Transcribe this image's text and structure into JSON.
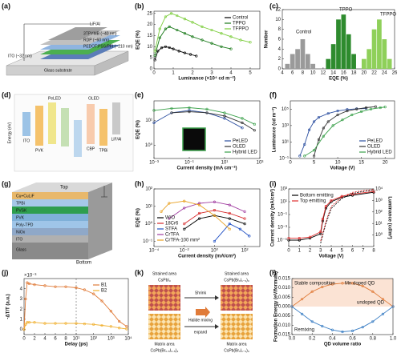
{
  "labels": [
    "(a)",
    "(b)",
    "(c)",
    "(d)",
    "(e)",
    "(f)",
    "(g)",
    "(h)",
    "(i)",
    "(j)",
    "(k)",
    "(l)"
  ],
  "diagrams": {
    "a": [
      "LiF/Al",
      "3TPYMB (~40 nm)",
      "RDP (~60 nm)",
      "PEDOT:PSS/PFI (~210 nm)",
      "ITO (~32 nm)",
      "Glass substrate"
    ],
    "d": [
      "Energy (eV)",
      "ITO",
      "PVK",
      "CBP",
      "TPBi",
      "LiF/Al",
      "PeLED",
      "OLED"
    ],
    "g": [
      "Top",
      "Cu+CuLiF",
      "TPBi",
      "PVSK",
      "PVK",
      "Poly-TPD",
      "NiOx",
      "ITO",
      "Glass",
      "Bottom"
    ],
    "k": [
      "Strained area",
      "CsPbI₃",
      "Shrink",
      "Halide mixing",
      "expand",
      "Strained area",
      "CsPb(BrₓI₁₋ₓ)₃",
      "Matrix area",
      "CsPb(Br₀.₅I₀.₅)₃",
      "Matrix area",
      "CsPb(BrₓI₁₋ₓ)₃"
    ]
  },
  "chart_data": [
    {
      "type": "line",
      "xlabel": "Luminance (×10⁴ cd m⁻²)",
      "ylabel": "EQE (%)",
      "xlim": [
        0,
        5.5
      ],
      "xticks": [
        0,
        1,
        2,
        3,
        4,
        5
      ],
      "ylim": [
        0,
        26
      ],
      "yticks": [
        0,
        5,
        10,
        15,
        20,
        25
      ],
      "legend": "upper right",
      "series": [
        {
          "name": "Control",
          "color": "#000000",
          "x": [
            0.05,
            0.2,
            0.4,
            0.6,
            0.8,
            1.0,
            1.3,
            1.6,
            1.9,
            2.2
          ],
          "values": [
            4,
            8,
            9.5,
            10,
            9.6,
            9,
            8,
            7.2,
            6.5,
            5.8
          ]
        },
        {
          "name": "TPPO",
          "color": "#1a7a1a",
          "x": [
            0.05,
            0.3,
            0.6,
            0.8,
            1.2,
            1.6,
            2,
            2.5,
            3,
            3.5,
            4
          ],
          "values": [
            6,
            14,
            18,
            19,
            17.5,
            16,
            14.5,
            13,
            11.5,
            10,
            9
          ]
        },
        {
          "name": "TFPPO",
          "color": "#7ccd3c",
          "x": [
            0.05,
            0.3,
            0.6,
            0.9,
            1.2,
            1.6,
            2,
            2.5,
            3,
            3.5,
            4,
            4.5,
            5
          ],
          "values": [
            8,
            18,
            23.5,
            25,
            24,
            22.5,
            21,
            19,
            17.5,
            16,
            14.5,
            13,
            12
          ]
        }
      ]
    },
    {
      "type": "bar",
      "xlabel": "EQE (%)",
      "ylabel": "Number",
      "xlim": [
        4,
        26
      ],
      "xticks": [
        4,
        6,
        8,
        10,
        12,
        14,
        16,
        18,
        20,
        22,
        24,
        26
      ],
      "ylim": [
        0,
        12
      ],
      "yticks": [
        0,
        2,
        4,
        6,
        8,
        10,
        12
      ],
      "annotations": [
        "Control",
        "TPPO",
        "TFPPO"
      ],
      "series": [
        {
          "name": "Control",
          "color": "#9a9a9a",
          "x": [
            5,
            6,
            7,
            8,
            9,
            10
          ],
          "values": [
            1,
            3,
            4,
            6,
            3,
            1
          ]
        },
        {
          "name": "TPPO",
          "color": "#2e8b2e",
          "x": [
            13,
            14,
            15,
            16,
            17,
            18
          ],
          "values": [
            2,
            5,
            10,
            11,
            7,
            3
          ]
        },
        {
          "name": "TFPPO",
          "color": "#8fd05a",
          "x": [
            20,
            21,
            22,
            23,
            24,
            25
          ],
          "values": [
            2,
            4,
            8,
            10,
            6,
            2
          ]
        }
      ]
    },
    {
      "type": "line",
      "xlabel": "Current density (mA cm⁻²)",
      "ylabel": "EQE (%)",
      "xscale": "log",
      "yscale": "log",
      "xlim": [
        0.001,
        1000
      ],
      "xticks": [
        {
          "value": 0.001,
          "label": "10⁻³"
        },
        {
          "value": 0.1,
          "label": "10⁻¹"
        },
        {
          "value": 10,
          "label": "10¹"
        },
        {
          "value": 1000,
          "label": "10³"
        }
      ],
      "ylim": [
        0.3,
        60
      ],
      "yticks": [
        {
          "value": 1,
          "label": "10⁰"
        },
        {
          "value": 10,
          "label": "10¹"
        }
      ],
      "legend": "lower right",
      "series": [
        {
          "name": "PeLED",
          "color": "#2c4fa0",
          "x": [
            0.001,
            0.01,
            0.1,
            1,
            10,
            100
          ],
          "values": [
            8,
            20,
            25,
            20,
            12,
            5
          ]
        },
        {
          "name": "OLED",
          "color": "#333333",
          "x": [
            0.01,
            0.1,
            1,
            10,
            100,
            500
          ],
          "values": [
            20,
            22,
            20,
            15,
            8,
            4
          ]
        },
        {
          "name": "Hybrid LED",
          "color": "#3aa04a",
          "x": [
            0.001,
            0.01,
            0.1,
            1,
            10,
            100,
            500
          ],
          "values": [
            25,
            30,
            32,
            28,
            20,
            12,
            7
          ]
        }
      ]
    },
    {
      "type": "line",
      "xlabel": "Voltage (V)",
      "ylabel": "Luminance (cd m⁻²)",
      "yscale": "log",
      "xlim": [
        0,
        22
      ],
      "xticks": [
        0,
        5,
        10,
        15,
        20
      ],
      "ylim": [
        0.1,
        1000000
      ],
      "yticks": [
        {
          "value": 0.1,
          "label": "10⁻¹"
        },
        {
          "value": 10,
          "label": "10¹"
        },
        {
          "value": 1000,
          "label": "10³"
        },
        {
          "value": 100000,
          "label": "10⁵"
        }
      ],
      "legend": "lower right",
      "series": [
        {
          "name": "PeLED",
          "color": "#2c4fa0",
          "x": [
            2,
            3,
            4,
            5,
            6,
            8,
            10,
            12,
            14,
            16
          ],
          "values": [
            0.2,
            5,
            300,
            3000,
            10000,
            30000,
            60000,
            90000,
            110000,
            120000
          ]
        },
        {
          "name": "OLED",
          "color": "#333333",
          "x": [
            5,
            6,
            7,
            8,
            10,
            12,
            14,
            16,
            18
          ],
          "values": [
            0.2,
            20,
            500,
            3000,
            20000,
            60000,
            100000,
            150000,
            200000
          ]
        },
        {
          "name": "Hybrid LED",
          "color": "#3aa04a",
          "x": [
            3,
            5,
            7,
            9,
            11,
            13,
            15,
            17,
            19,
            20
          ],
          "values": [
            0.2,
            1,
            50,
            1000,
            5000,
            20000,
            50000,
            100000,
            150000,
            180000
          ]
        }
      ]
    },
    {
      "type": "line",
      "xlabel": "Current density (mA/cm²)",
      "ylabel": "EQE (%)",
      "xscale": "log",
      "yscale": "log",
      "xlim": [
        0.0001,
        1000
      ],
      "xticks": [
        {
          "value": 0.0001,
          "label": "10⁻⁴"
        },
        {
          "value": 0.01,
          "label": "10⁻²"
        },
        {
          "value": 1,
          "label": "10⁰"
        },
        {
          "value": 100,
          "label": "10²"
        }
      ],
      "ylim": [
        0.05,
        100
      ],
      "yticks": [
        {
          "value": 0.1,
          "label": "10⁻¹"
        },
        {
          "value": 1,
          "label": "10⁰"
        },
        {
          "value": 10,
          "label": "10¹"
        },
        {
          "value": 100,
          "label": "10²"
        }
      ],
      "legend": "lower left",
      "series": [
        {
          "name": "W/O",
          "color": "#000000",
          "x": [
            0.01,
            0.1,
            1,
            10,
            100
          ],
          "values": [
            0.5,
            2,
            3,
            2,
            1
          ]
        },
        {
          "name": "18Cr6",
          "color": "#d62728",
          "x": [
            0.01,
            0.1,
            1,
            10,
            100
          ],
          "values": [
            1,
            4,
            6,
            4,
            2
          ]
        },
        {
          "name": "STFA",
          "color": "#1f4fc4",
          "x": [
            1,
            10,
            50,
            200
          ],
          "values": [
            0.1,
            1,
            0.5,
            0.2
          ]
        },
        {
          "name": "CrTFA",
          "color": "#a03ca0",
          "x": [
            0.001,
            0.01,
            0.1,
            1,
            10,
            100
          ],
          "values": [
            2,
            8,
            15,
            18,
            12,
            5
          ]
        },
        {
          "name": "CrTFA-100 mm²",
          "color": "#e8a020",
          "x": [
            0.0003,
            0.001,
            0.01,
            0.1,
            1,
            10
          ],
          "values": [
            5,
            15,
            20,
            12,
            3,
            0.5
          ]
        }
      ]
    },
    {
      "type": "line",
      "xlabel": "Voltage (V)",
      "ylabel": "Current density (mA/cm²)",
      "y2label": "Luminance (cd/m²)",
      "yscale": "log",
      "y2scale": "log",
      "xlim": [
        0,
        8
      ],
      "xticks": [
        0,
        1,
        2,
        3,
        4,
        5,
        6,
        7,
        8
      ],
      "ylim": [
        1e-06,
        1000
      ],
      "yticks": [
        {
          "value": 1e-05,
          "label": "10⁻⁵"
        },
        {
          "value": 0.001,
          "label": "10⁻³"
        },
        {
          "value": 0.1,
          "label": "10⁻¹"
        },
        {
          "value": 10,
          "label": "10¹"
        },
        {
          "value": 1000,
          "label": "10³"
        }
      ],
      "y2lim": [
        0.1,
        10000
      ],
      "y2ticks": [
        {
          "value": 1,
          "label": "10⁰"
        },
        {
          "value": 10,
          "label": "10¹"
        },
        {
          "value": 100,
          "label": "10²"
        },
        {
          "value": 1000,
          "label": "10³"
        },
        {
          "value": 10000,
          "label": "10⁴"
        }
      ],
      "legend": "upper left",
      "series": [
        {
          "name": "Bottom emitting",
          "color": "#000000",
          "x": [
            0,
            1,
            2,
            3,
            3.2,
            3.5,
            4,
            5,
            6,
            8
          ],
          "values": [
            1e-05,
            1e-05,
            2e-05,
            0.0001,
            0.01,
            1,
            10,
            50,
            100,
            300
          ]
        },
        {
          "name": "Top emitting",
          "color": "#e03030",
          "x": [
            0,
            1,
            2,
            3,
            3.2,
            3.5,
            4,
            5,
            6,
            8
          ],
          "values": [
            2e-05,
            2e-05,
            3e-05,
            0.0002,
            0.02,
            2,
            15,
            70,
            150,
            400
          ]
        },
        {
          "name": "Bottom emitting",
          "color": "#000000",
          "axis": "y2",
          "dash": true,
          "x": [
            3,
            3.5,
            4,
            5,
            6,
            7,
            8
          ],
          "values": [
            0.2,
            10,
            200,
            1500,
            4000,
            6000,
            8000
          ]
        },
        {
          "name": "Top emitting",
          "color": "#e03030",
          "axis": "y2",
          "dash": true,
          "x": [
            3,
            3.5,
            4,
            5,
            6,
            7,
            8
          ],
          "values": [
            0.3,
            15,
            300,
            2000,
            5000,
            7000,
            9000
          ]
        }
      ]
    },
    {
      "type": "line",
      "xlabel": "Delay (ps)",
      "ylabel": "-ΔT/T (a.u.)",
      "y_multiplier": "×10⁻³",
      "xbreak": 10,
      "xlim": [
        0,
        10000
      ],
      "xticks": [
        0,
        2,
        4,
        6,
        8,
        {
          "value": 10,
          "label": "10¹"
        },
        {
          "value": 100,
          "label": "10²"
        },
        {
          "value": 1000,
          "label": "10³"
        },
        {
          "value": 10000,
          "label": "10⁴"
        }
      ],
      "ylim": [
        -0.5,
        5
      ],
      "yticks": [
        0,
        1,
        2,
        3,
        4
      ],
      "legend": "upper right",
      "series": [
        {
          "name": "B1",
          "color": "#e07b39",
          "x": [
            0,
            0.3,
            0.6,
            1,
            2,
            4,
            6,
            8,
            10,
            30,
            100,
            300,
            1000,
            3000,
            8000
          ],
          "values": [
            0,
            3,
            4.6,
            4.5,
            4.4,
            4.3,
            4.2,
            4.2,
            4.1,
            3.9,
            3.5,
            2.8,
            1.8,
            0.8,
            0.3
          ]
        },
        {
          "name": "B2",
          "color": "#f0b030",
          "x": [
            0,
            0.3,
            0.6,
            1,
            2,
            4,
            6,
            8,
            10,
            30,
            100,
            300,
            1000,
            3000,
            8000
          ],
          "values": [
            0,
            0.5,
            0.7,
            0.7,
            0.7,
            0.6,
            0.6,
            0.6,
            0.6,
            0.55,
            0.5,
            0.4,
            0.3,
            0.15,
            0.05
          ]
        }
      ]
    },
    {
      "type": "line",
      "xlabel": "QD volume ratio",
      "ylabel": "Formation Energy (eV/formula)",
      "xlim": [
        0,
        1
      ],
      "xticks": [
        {
          "value": 0,
          "label": "0.0"
        },
        0.2,
        0.4,
        0.6,
        0.8,
        {
          "value": 1,
          "label": "1.0"
        }
      ],
      "ylim": [
        -0.015,
        0.015
      ],
      "yticks": [
        {
          "value": -0.015,
          "label": "-0.015"
        },
        {
          "value": -0.01,
          "label": "-0.010"
        },
        {
          "value": -0.005,
          "label": "-0.005"
        },
        {
          "value": 0,
          "label": "0.000"
        },
        {
          "value": 0.005,
          "label": "0.005"
        },
        {
          "value": 0.01,
          "label": "0.010"
        },
        {
          "value": 0.015,
          "label": "0.015"
        }
      ],
      "shade_above_zero": true,
      "annotations": [
        "Stable composition",
        "Mn doped QD",
        "undoped QD",
        "Remixing"
      ],
      "series": [
        {
          "name": "Mn doped QD",
          "color": "#e07b39",
          "x": [
            0,
            0.1,
            0.2,
            0.3,
            0.4,
            0.5,
            0.6,
            0.7,
            0.8,
            0.9,
            1
          ],
          "values": [
            0,
            0.004,
            0.008,
            0.0105,
            0.012,
            0.0125,
            0.0125,
            0.011,
            0.008,
            0.004,
            0
          ]
        },
        {
          "name": "undoped QD",
          "color": "#3a7ec4",
          "x": [
            0,
            0.1,
            0.2,
            0.3,
            0.4,
            0.5,
            0.6,
            0.7,
            0.8,
            0.9,
            1
          ],
          "values": [
            0,
            -0.004,
            -0.008,
            -0.0105,
            -0.0125,
            -0.0135,
            -0.013,
            -0.011,
            -0.008,
            -0.004,
            0
          ]
        }
      ]
    }
  ]
}
